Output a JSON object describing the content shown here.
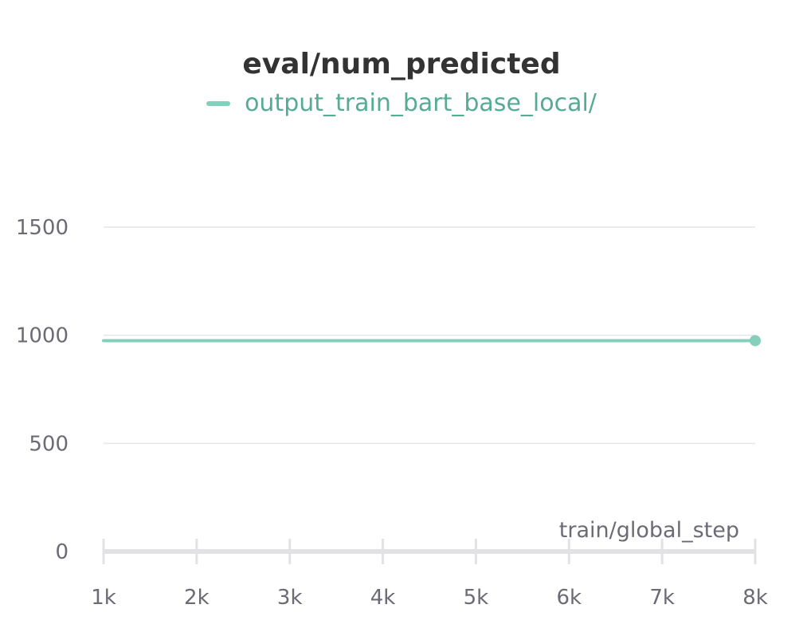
{
  "chart_data": {
    "type": "line",
    "title": "eval/num_predicted",
    "xlabel": "train/global_step",
    "ylabel": "",
    "xlim": [
      1000,
      8000
    ],
    "ylim": [
      0,
      1500
    ],
    "x_ticks": [
      1000,
      2000,
      3000,
      4000,
      5000,
      6000,
      7000,
      8000
    ],
    "x_tick_labels": [
      "1k",
      "2k",
      "3k",
      "4k",
      "5k",
      "6k",
      "7k",
      "8k"
    ],
    "y_ticks": [
      0,
      500,
      1000,
      1500
    ],
    "y_tick_labels": [
      "0",
      "500",
      "1000",
      "1500"
    ],
    "grid": "horizontal",
    "legend": "top-center",
    "series": [
      {
        "name": "output_train_bart_base_local/",
        "color": "#86cfbc",
        "label_color": "#55ab94",
        "x": [
          1000,
          8000
        ],
        "y": [
          975,
          975
        ],
        "end_marker": true
      }
    ]
  }
}
